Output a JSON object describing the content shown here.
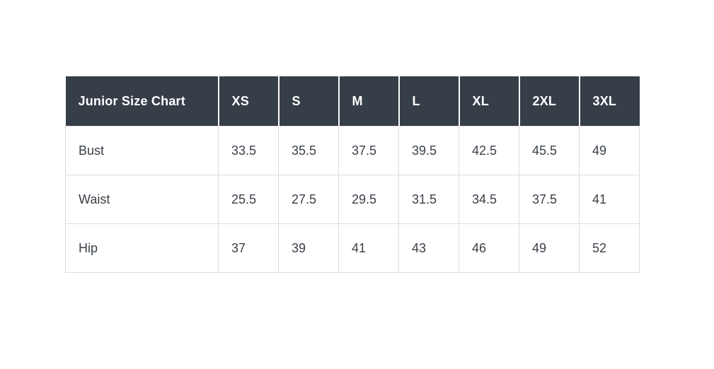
{
  "colors": {
    "page_bg": "#ffffff",
    "header_bg": "#363e48",
    "header_text": "#ffffff",
    "body_text": "#3a4049",
    "border": "#dddddd"
  },
  "table": {
    "title": "Junior Size Chart",
    "columns": [
      "XS",
      "S",
      "M",
      "L",
      "XL",
      "2XL",
      "3XL"
    ],
    "rows": [
      {
        "label": "Bust",
        "values": [
          "33.5",
          "35.5",
          "37.5",
          "39.5",
          "42.5",
          "45.5",
          "49"
        ]
      },
      {
        "label": "Waist",
        "values": [
          "25.5",
          "27.5",
          "29.5",
          "31.5",
          "34.5",
          "37.5",
          "41"
        ]
      },
      {
        "label": "Hip",
        "values": [
          "37",
          "39",
          "41",
          "43",
          "46",
          "49",
          "52"
        ]
      }
    ]
  },
  "chart_data": {
    "type": "table",
    "title": "Junior Size Chart",
    "categories": [
      "XS",
      "S",
      "M",
      "L",
      "XL",
      "2XL",
      "3XL"
    ],
    "series": [
      {
        "name": "Bust",
        "values": [
          33.5,
          35.5,
          37.5,
          39.5,
          42.5,
          45.5,
          49
        ]
      },
      {
        "name": "Waist",
        "values": [
          25.5,
          27.5,
          29.5,
          31.5,
          34.5,
          37.5,
          41
        ]
      },
      {
        "name": "Hip",
        "values": [
          37,
          39,
          41,
          43,
          46,
          49,
          52
        ]
      }
    ],
    "layout": {
      "header_row": true,
      "first_column_is_label": true,
      "grid": true
    }
  }
}
